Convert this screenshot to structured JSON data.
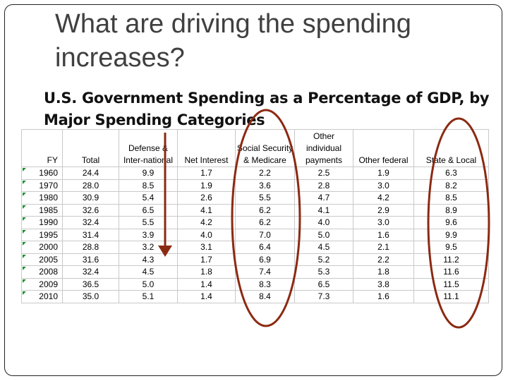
{
  "slide": {
    "title": "What are driving the spending increases?",
    "subtitle": "U.S. Government Spending as a Percentage of GDP, by Major Spending Categories"
  },
  "table": {
    "headers": [
      "FY",
      "Total",
      "Defense & Inter-national",
      "Net Interest",
      "Social Security & Medicare",
      "Other individual payments",
      "Other federal",
      "State & Local"
    ],
    "rows": [
      [
        "1960",
        "24.4",
        "9.9",
        "1.7",
        "2.2",
        "2.5",
        "1.9",
        "6.3"
      ],
      [
        "1970",
        "28.0",
        "8.5",
        "1.9",
        "3.6",
        "2.8",
        "3.0",
        "8.2"
      ],
      [
        "1980",
        "30.9",
        "5.4",
        "2.6",
        "5.5",
        "4.7",
        "4.2",
        "8.5"
      ],
      [
        "1985",
        "32.6",
        "6.5",
        "4.1",
        "6.2",
        "4.1",
        "2.9",
        "8.9"
      ],
      [
        "1990",
        "32.4",
        "5.5",
        "4.2",
        "6.2",
        "4.0",
        "3.0",
        "9.6"
      ],
      [
        "1995",
        "31.4",
        "3.9",
        "4.0",
        "7.0",
        "5.0",
        "1.6",
        "9.9"
      ],
      [
        "2000",
        "28.8",
        "3.2",
        "3.1",
        "6.4",
        "4.5",
        "2.1",
        "9.5"
      ],
      [
        "2005",
        "31.6",
        "4.3",
        "1.7",
        "6.9",
        "5.2",
        "2.2",
        "11.2"
      ],
      [
        "2008",
        "32.4",
        "4.5",
        "1.8",
        "7.4",
        "5.3",
        "1.8",
        "11.6"
      ],
      [
        "2009",
        "36.5",
        "5.0",
        "1.4",
        "8.3",
        "6.5",
        "3.8",
        "11.5"
      ],
      [
        "2010",
        "35.0",
        "5.1",
        "1.4",
        "8.4",
        "7.3",
        "1.6",
        "11.1"
      ]
    ]
  },
  "annotations": {
    "color": "#8b2a12",
    "items": [
      "down-arrow-defense",
      "circle-social-security-medicare",
      "circle-state-local"
    ]
  }
}
